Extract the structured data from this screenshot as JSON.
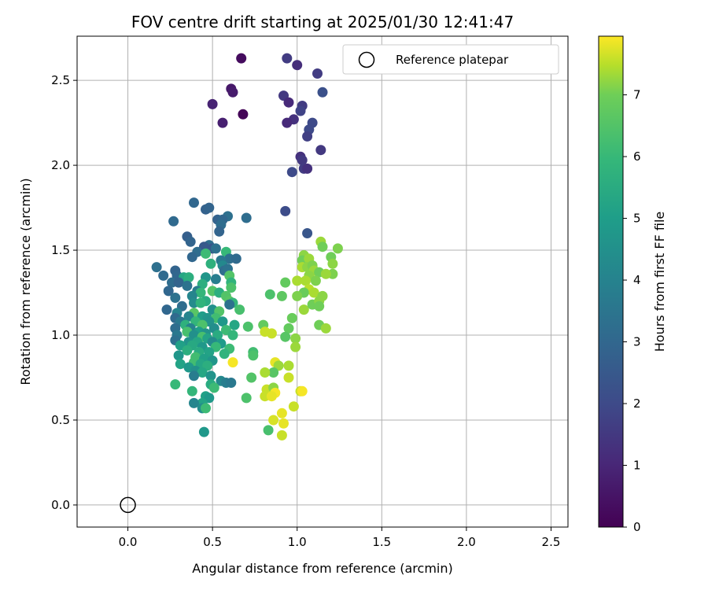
{
  "chart_data": {
    "type": "scatter",
    "title": "FOV centre drift starting at 2025/01/30 12:41:47",
    "xlabel": "Angular distance from reference (arcmin)",
    "ylabel": "Rotation from reference (arcmin)",
    "xlim": [
      -0.3,
      2.6
    ],
    "ylim": [
      -0.13,
      2.76
    ],
    "xticks": [
      "0.0",
      "0.5",
      "1.0",
      "1.5",
      "2.0",
      "2.5"
    ],
    "yticks": [
      "0.0",
      "0.5",
      "1.0",
      "1.5",
      "2.0",
      "2.5"
    ],
    "grid": true,
    "legend": {
      "position": "top-right",
      "entries": [
        "Reference platepar"
      ]
    },
    "colorbar": {
      "label": "Hours from first FF file",
      "min": 0,
      "max": 7.95,
      "ticks": [
        "0",
        "1",
        "2",
        "3",
        "4",
        "5",
        "6",
        "7"
      ],
      "colormap": "viridis"
    },
    "reference_point": {
      "x": 0.0,
      "y": 0.0,
      "label": "Reference platepar"
    },
    "points": [
      [
        0.67,
        2.63,
        0.3
      ],
      [
        0.94,
        2.63,
        1.6
      ],
      [
        1.0,
        2.59,
        1.2
      ],
      [
        1.12,
        2.54,
        1.6
      ],
      [
        0.61,
        2.45,
        0.6
      ],
      [
        0.62,
        2.43,
        0.7
      ],
      [
        1.15,
        2.43,
        2.2
      ],
      [
        0.92,
        2.41,
        1.5
      ],
      [
        0.95,
        2.37,
        1.1
      ],
      [
        0.5,
        2.36,
        0.9
      ],
      [
        1.03,
        2.35,
        1.6
      ],
      [
        1.02,
        2.32,
        1.8
      ],
      [
        0.68,
        2.3,
        0.1
      ],
      [
        0.98,
        2.27,
        1.3
      ],
      [
        0.56,
        2.25,
        0.8
      ],
      [
        0.94,
        2.25,
        1.1
      ],
      [
        1.09,
        2.25,
        2.0
      ],
      [
        1.07,
        2.21,
        2.0
      ],
      [
        1.06,
        2.17,
        1.7
      ],
      [
        1.14,
        2.09,
        1.5
      ],
      [
        1.02,
        2.05,
        1.3
      ],
      [
        1.03,
        2.03,
        1.5
      ],
      [
        1.04,
        1.98,
        1.6
      ],
      [
        1.06,
        1.98,
        1.3
      ],
      [
        0.97,
        1.96,
        2.0
      ],
      [
        0.39,
        1.78,
        3.0
      ],
      [
        0.46,
        1.74,
        2.8
      ],
      [
        0.48,
        1.75,
        2.9
      ],
      [
        0.93,
        1.73,
        2.1
      ],
      [
        0.59,
        1.7,
        3.3
      ],
      [
        0.7,
        1.69,
        3.2
      ],
      [
        0.53,
        1.68,
        2.8
      ],
      [
        0.56,
        1.68,
        3.0
      ],
      [
        0.27,
        1.67,
        3.1
      ],
      [
        0.55,
        1.65,
        3.2
      ],
      [
        0.54,
        1.61,
        2.9
      ],
      [
        1.06,
        1.6,
        2.4
      ],
      [
        0.35,
        1.58,
        2.7
      ],
      [
        0.37,
        1.55,
        2.9
      ],
      [
        0.48,
        1.53,
        3.2
      ],
      [
        0.45,
        1.52,
        2.5
      ],
      [
        0.5,
        1.51,
        2.4
      ],
      [
        0.52,
        1.51,
        3.3
      ],
      [
        0.41,
        1.49,
        3.2
      ],
      [
        0.58,
        1.49,
        6.0
      ],
      [
        0.38,
        1.46,
        3.0
      ],
      [
        0.46,
        1.48,
        6.1
      ],
      [
        0.6,
        1.45,
        3.3
      ],
      [
        0.64,
        1.45,
        3.1
      ],
      [
        0.55,
        1.44,
        3.6
      ],
      [
        0.49,
        1.42,
        5.7
      ],
      [
        0.56,
        1.41,
        4.2
      ],
      [
        0.17,
        1.4,
        3.3
      ],
      [
        0.57,
        1.38,
        3.2
      ],
      [
        0.59,
        1.39,
        3.4
      ],
      [
        0.28,
        1.38,
        2.9
      ],
      [
        0.29,
        1.35,
        3.0
      ],
      [
        0.21,
        1.35,
        3.1
      ],
      [
        0.33,
        1.34,
        5.3
      ],
      [
        0.36,
        1.34,
        5.6
      ],
      [
        0.46,
        1.34,
        4.7
      ],
      [
        0.6,
        1.35,
        6.5
      ],
      [
        0.52,
        1.33,
        3.8
      ],
      [
        0.26,
        1.31,
        3.2
      ],
      [
        0.3,
        1.31,
        2.9
      ],
      [
        0.61,
        1.31,
        5.8
      ],
      [
        0.35,
        1.29,
        3.4
      ],
      [
        0.44,
        1.3,
        5.6
      ],
      [
        0.61,
        1.28,
        6.4
      ],
      [
        0.24,
        1.26,
        3.0
      ],
      [
        0.41,
        1.26,
        3.8
      ],
      [
        0.43,
        1.25,
        5.9
      ],
      [
        0.5,
        1.26,
        6.5
      ],
      [
        0.54,
        1.25,
        5.6
      ],
      [
        0.38,
        1.23,
        4.1
      ],
      [
        0.58,
        1.23,
        6.5
      ],
      [
        0.28,
        1.22,
        3.4
      ],
      [
        0.46,
        1.2,
        5.5
      ],
      [
        0.6,
        1.2,
        6.6
      ],
      [
        0.39,
        1.19,
        4.3
      ],
      [
        0.43,
        1.19,
        5.8
      ],
      [
        0.62,
        1.19,
        5.9
      ],
      [
        0.6,
        1.18,
        3.4
      ],
      [
        0.32,
        1.17,
        3.2
      ],
      [
        0.23,
        1.15,
        3.0
      ],
      [
        0.5,
        1.15,
        4.5
      ],
      [
        0.54,
        1.14,
        6.5
      ],
      [
        0.66,
        1.15,
        6.3
      ],
      [
        0.29,
        1.13,
        4.0
      ],
      [
        0.39,
        1.13,
        6.6
      ],
      [
        0.36,
        1.11,
        4.1
      ],
      [
        0.44,
        1.11,
        5.0
      ],
      [
        0.28,
        1.1,
        3.1
      ],
      [
        0.47,
        1.1,
        4.7
      ],
      [
        0.52,
        1.1,
        6.2
      ],
      [
        0.31,
        1.08,
        3.6
      ],
      [
        0.4,
        1.08,
        5.9
      ],
      [
        0.48,
        1.08,
        4.6
      ],
      [
        0.56,
        1.08,
        4.8
      ],
      [
        0.34,
        1.06,
        5.7
      ],
      [
        0.44,
        1.06,
        6.4
      ],
      [
        0.63,
        1.06,
        5.3
      ],
      [
        0.28,
        1.04,
        3.2
      ],
      [
        0.37,
        1.04,
        4.0
      ],
      [
        0.51,
        1.04,
        4.4
      ],
      [
        0.58,
        1.03,
        6.1
      ],
      [
        0.35,
        1.02,
        6.3
      ],
      [
        0.42,
        1.02,
        5.0
      ],
      [
        0.46,
        1.01,
        4.6
      ],
      [
        0.29,
        1.0,
        3.6
      ],
      [
        0.39,
        1.0,
        4.5
      ],
      [
        0.53,
        1.0,
        5.5
      ],
      [
        0.62,
        1.0,
        5.9
      ],
      [
        0.44,
        0.99,
        6.3
      ],
      [
        0.47,
        0.98,
        5.2
      ],
      [
        0.28,
        0.97,
        3.3
      ],
      [
        0.36,
        0.96,
        4.6
      ],
      [
        0.41,
        0.96,
        5.3
      ],
      [
        0.5,
        0.96,
        4.3
      ],
      [
        0.55,
        0.95,
        4.9
      ],
      [
        0.31,
        0.94,
        5.1
      ],
      [
        0.38,
        0.94,
        5.4
      ],
      [
        0.44,
        0.93,
        4.8
      ],
      [
        0.52,
        0.93,
        6.0
      ],
      [
        0.6,
        0.92,
        6.1
      ],
      [
        0.35,
        0.91,
        5.6
      ],
      [
        0.42,
        0.9,
        5.5
      ],
      [
        0.48,
        0.9,
        5.2
      ],
      [
        0.57,
        0.89,
        5.8
      ],
      [
        0.3,
        0.88,
        4.7
      ],
      [
        0.4,
        0.87,
        6.2
      ],
      [
        0.45,
        0.86,
        5.1
      ],
      [
        0.5,
        0.85,
        4.7
      ],
      [
        0.39,
        0.84,
        6.2
      ],
      [
        0.43,
        0.83,
        5.3
      ],
      [
        0.47,
        0.82,
        5.6
      ],
      [
        0.31,
        0.83,
        5.2
      ],
      [
        0.62,
        0.84,
        7.9
      ],
      [
        0.36,
        0.81,
        4.8
      ],
      [
        0.4,
        0.79,
        4.5
      ],
      [
        0.44,
        0.78,
        5.3
      ],
      [
        0.49,
        0.76,
        4.6
      ],
      [
        0.39,
        0.76,
        3.8
      ],
      [
        0.55,
        0.73,
        4.2
      ],
      [
        0.58,
        0.72,
        3.8
      ],
      [
        0.61,
        0.72,
        3.6
      ],
      [
        0.49,
        0.71,
        5.5
      ],
      [
        0.28,
        0.71,
        6.0
      ],
      [
        0.51,
        0.69,
        6.1
      ],
      [
        0.38,
        0.67,
        5.9
      ],
      [
        0.46,
        0.64,
        5.1
      ],
      [
        0.48,
        0.63,
        4.8
      ],
      [
        0.44,
        0.6,
        5.2
      ],
      [
        0.39,
        0.6,
        4.1
      ],
      [
        0.44,
        0.57,
        4.4
      ],
      [
        0.46,
        0.57,
        6.1
      ],
      [
        0.45,
        0.43,
        4.8
      ],
      [
        0.71,
        1.05,
        6.4
      ],
      [
        0.74,
        0.9,
        6.2
      ],
      [
        0.74,
        0.88,
        6.4
      ],
      [
        0.73,
        0.75,
        6.5
      ],
      [
        0.7,
        0.63,
        6.4
      ],
      [
        0.8,
        1.06,
        6.8
      ],
      [
        0.81,
        1.02,
        7.6
      ],
      [
        0.85,
        1.01,
        7.6
      ],
      [
        0.84,
        1.24,
        6.4
      ],
      [
        0.91,
        1.23,
        6.7
      ],
      [
        0.93,
        1.31,
        6.8
      ],
      [
        0.95,
        1.04,
        6.8
      ],
      [
        0.97,
        1.1,
        6.9
      ],
      [
        0.93,
        0.99,
        6.6
      ],
      [
        0.99,
        0.98,
        7.2
      ],
      [
        0.99,
        0.93,
        7.3
      ],
      [
        0.87,
        0.84,
        7.8
      ],
      [
        0.89,
        0.82,
        7.3
      ],
      [
        0.86,
        0.78,
        6.6
      ],
      [
        0.81,
        0.78,
        7.4
      ],
      [
        0.82,
        0.68,
        7.6
      ],
      [
        0.86,
        0.69,
        7.2
      ],
      [
        0.87,
        0.66,
        7.9
      ],
      [
        0.81,
        0.64,
        7.6
      ],
      [
        0.85,
        0.64,
        7.8
      ],
      [
        0.95,
        0.82,
        7.4
      ],
      [
        0.95,
        0.75,
        7.6
      ],
      [
        1.02,
        0.67,
        7.6
      ],
      [
        1.03,
        0.67,
        7.9
      ],
      [
        0.98,
        0.58,
        7.6
      ],
      [
        0.91,
        0.54,
        7.8
      ],
      [
        0.86,
        0.5,
        7.7
      ],
      [
        0.92,
        0.48,
        7.8
      ],
      [
        0.83,
        0.44,
        6.3
      ],
      [
        0.91,
        0.41,
        7.6
      ],
      [
        1.04,
        1.47,
        7.2
      ],
      [
        1.03,
        1.44,
        7.0
      ],
      [
        1.07,
        1.45,
        7.3
      ],
      [
        1.03,
        1.4,
        7.4
      ],
      [
        1.06,
        1.4,
        7.2
      ],
      [
        1.09,
        1.41,
        7.1
      ],
      [
        1.1,
        1.38,
        7.3
      ],
      [
        1.13,
        1.37,
        7.0
      ],
      [
        1.07,
        1.35,
        7.2
      ],
      [
        1.05,
        1.32,
        7.4
      ],
      [
        1.11,
        1.32,
        7.1
      ],
      [
        1.0,
        1.32,
        7.4
      ],
      [
        1.07,
        1.27,
        7.5
      ],
      [
        1.04,
        1.25,
        6.9
      ],
      [
        1.0,
        1.23,
        7.1
      ],
      [
        1.04,
        1.15,
        7.3
      ],
      [
        1.09,
        1.18,
        7.0
      ],
      [
        1.1,
        1.25,
        7.4
      ],
      [
        1.13,
        1.2,
        7.2
      ],
      [
        1.13,
        1.17,
        7.0
      ],
      [
        1.15,
        1.23,
        7.2
      ],
      [
        1.14,
        1.55,
        7.3
      ],
      [
        1.15,
        1.52,
        7.0
      ],
      [
        1.2,
        1.46,
        7.0
      ],
      [
        1.21,
        1.42,
        7.2
      ],
      [
        1.21,
        1.36,
        7.1
      ],
      [
        1.17,
        1.36,
        7.3
      ],
      [
        1.24,
        1.51,
        7.1
      ],
      [
        1.13,
        1.06,
        7.0
      ],
      [
        1.17,
        1.04,
        7.3
      ]
    ]
  }
}
